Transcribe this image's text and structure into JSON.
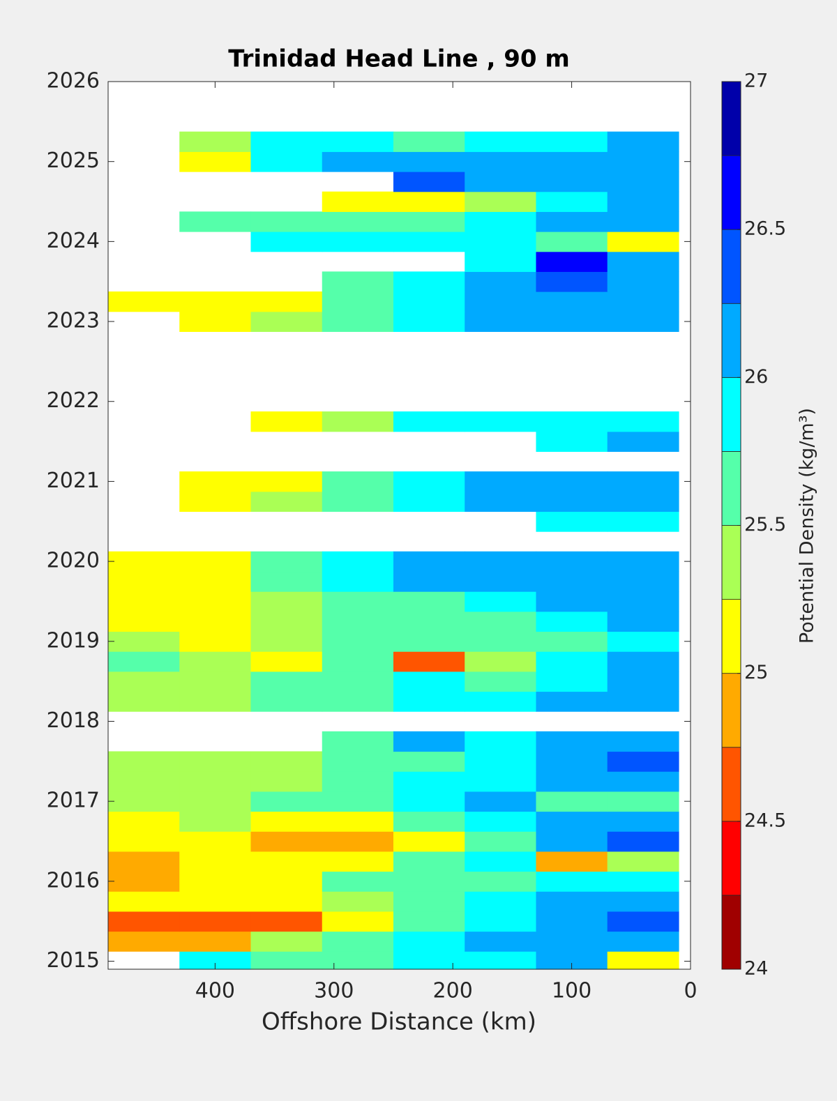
{
  "chart_data": {
    "type": "contourf",
    "title": "Trinidad Head Line , 90 m",
    "xlabel": "Offshore Distance (km)",
    "colorbar_label": "Potential Density (kg/m³)",
    "xlim": [
      490,
      0
    ],
    "xticks": [
      400,
      300,
      200,
      100,
      0
    ],
    "ylim": [
      2014.9,
      2026
    ],
    "yticks": [
      2015,
      2016,
      2017,
      2018,
      2019,
      2020,
      2021,
      2022,
      2023,
      2024,
      2025,
      2026
    ],
    "levels": [
      24,
      24.25,
      24.5,
      24.75,
      25,
      25.25,
      25.5,
      25.75,
      26,
      26.25,
      26.5,
      26.75,
      27
    ],
    "colors": [
      "#a00000",
      "#ff0000",
      "#ff5500",
      "#ffaa00",
      "#ffff00",
      "#aaff55",
      "#55ffaa",
      "#00ffff",
      "#00aaff",
      "#0055ff",
      "#0000ff",
      "#0000aa"
    ],
    "cticks": [
      24,
      24.5,
      25,
      25.5,
      26,
      26.5,
      27
    ],
    "x": [
      460,
      400,
      340,
      280,
      220,
      160,
      100,
      40
    ],
    "y": [
      2015,
      2015.25,
      2015.5,
      2015.75,
      2016,
      2016.25,
      2016.5,
      2016.75,
      2017,
      2017.25,
      2017.5,
      2017.75,
      2018,
      2018.25,
      2018.5,
      2018.75,
      2019,
      2019.25,
      2019.5,
      2019.75,
      2020,
      2020.25,
      2020.5,
      2020.75,
      2021,
      2021.25,
      2021.5,
      2021.75,
      2022,
      2022.25,
      2022.5,
      2022.75,
      2023,
      2023.25,
      2023.5,
      2023.75,
      2024,
      2024.25,
      2024.5,
      2024.75,
      2025,
      2025.25
    ],
    "z": [
      [
        null,
        25.8,
        25.7,
        25.6,
        25.8,
        25.9,
        26.0,
        25.0
      ],
      [
        24.8,
        24.9,
        25.4,
        25.6,
        25.8,
        26.0,
        26.2,
        26.2
      ],
      [
        24.7,
        24.6,
        24.7,
        25.0,
        25.5,
        25.8,
        26.1,
        26.3
      ],
      [
        25.0,
        25.1,
        25.2,
        25.4,
        25.7,
        25.9,
        26.1,
        26.2
      ],
      [
        24.8,
        25.1,
        25.2,
        25.6,
        25.6,
        25.7,
        25.8,
        25.9
      ],
      [
        24.9,
        25.2,
        25.1,
        25.2,
        25.6,
        25.8,
        24.9,
        25.3
      ],
      [
        25.2,
        25.1,
        24.8,
        24.8,
        25.2,
        25.7,
        26.0,
        26.3
      ],
      [
        25.2,
        25.3,
        25.2,
        25.2,
        25.7,
        25.9,
        26.1,
        26.2
      ],
      [
        25.4,
        25.4,
        25.5,
        25.6,
        25.8,
        26.0,
        25.7,
        25.6
      ],
      [
        25.4,
        25.4,
        25.4,
        25.6,
        25.8,
        25.9,
        26.0,
        26.1
      ],
      [
        25.4,
        25.3,
        25.4,
        25.5,
        25.7,
        25.9,
        26.2,
        26.3
      ],
      [
        null,
        null,
        null,
        25.6,
        26.0,
        25.9,
        26.0,
        26.1
      ],
      [
        null,
        null,
        null,
        null,
        null,
        null,
        null,
        null
      ],
      [
        25.4,
        25.3,
        25.5,
        25.6,
        25.8,
        25.9,
        26.1,
        26.2
      ],
      [
        25.3,
        25.4,
        25.6,
        25.7,
        25.8,
        25.7,
        25.9,
        26.2
      ],
      [
        25.6,
        25.3,
        25.1,
        25.6,
        24.6,
        25.4,
        25.8,
        26.2
      ],
      [
        25.4,
        25.2,
        25.4,
        25.6,
        25.5,
        25.6,
        25.7,
        25.9
      ],
      [
        25.2,
        25.1,
        25.4,
        25.5,
        25.6,
        25.7,
        25.8,
        26.0
      ],
      [
        25.2,
        25.2,
        25.4,
        25.6,
        25.7,
        25.8,
        26.1,
        26.2
      ],
      [
        25.2,
        25.2,
        25.5,
        25.8,
        26.1,
        26.0,
        26.0,
        26.1
      ],
      [
        25.1,
        25.2,
        25.5,
        25.9,
        26.1,
        26.0,
        26.0,
        26.0
      ],
      [
        null,
        null,
        null,
        null,
        null,
        null,
        null,
        null
      ],
      [
        null,
        null,
        null,
        null,
        null,
        null,
        25.9,
        25.9
      ],
      [
        null,
        25.1,
        25.4,
        25.5,
        25.9,
        26.1,
        26.1,
        26.0
      ],
      [
        null,
        25.0,
        25.2,
        25.6,
        25.8,
        26.0,
        26.0,
        26.0
      ],
      [
        null,
        null,
        null,
        null,
        null,
        null,
        null,
        null
      ],
      [
        null,
        null,
        null,
        null,
        null,
        null,
        25.9,
        26.2
      ],
      [
        null,
        null,
        25.2,
        25.3,
        25.8,
        25.9,
        25.9,
        25.9
      ],
      [
        null,
        null,
        null,
        null,
        null,
        null,
        null,
        null
      ],
      [
        null,
        null,
        null,
        null,
        null,
        null,
        null,
        null
      ],
      [
        null,
        null,
        null,
        null,
        null,
        null,
        null,
        null
      ],
      [
        null,
        null,
        null,
        null,
        null,
        null,
        null,
        null
      ],
      [
        null,
        25.1,
        25.3,
        25.5,
        25.8,
        26.0,
        26.1,
        26.0
      ],
      [
        25.1,
        25.1,
        25.2,
        25.5,
        25.9,
        26.0,
        26.1,
        26.2
      ],
      [
        null,
        null,
        null,
        25.5,
        25.9,
        26.0,
        26.4,
        26.1
      ],
      [
        null,
        null,
        null,
        null,
        null,
        25.8,
        26.6,
        26.2
      ],
      [
        null,
        null,
        25.8,
        25.8,
        25.9,
        25.9,
        25.5,
        25.0
      ],
      [
        null,
        25.7,
        25.7,
        25.6,
        25.7,
        25.9,
        26.0,
        26.1
      ],
      [
        null,
        null,
        null,
        25.1,
        25.2,
        25.4,
        25.9,
        26.2
      ],
      [
        null,
        null,
        null,
        null,
        26.4,
        26.2,
        26.1,
        26.0
      ],
      [
        null,
        25.1,
        25.8,
        26.1,
        26.2,
        26.1,
        26.0,
        26.0
      ],
      [
        null,
        25.4,
        25.8,
        25.8,
        25.5,
        25.8,
        25.9,
        26.1
      ]
    ]
  }
}
